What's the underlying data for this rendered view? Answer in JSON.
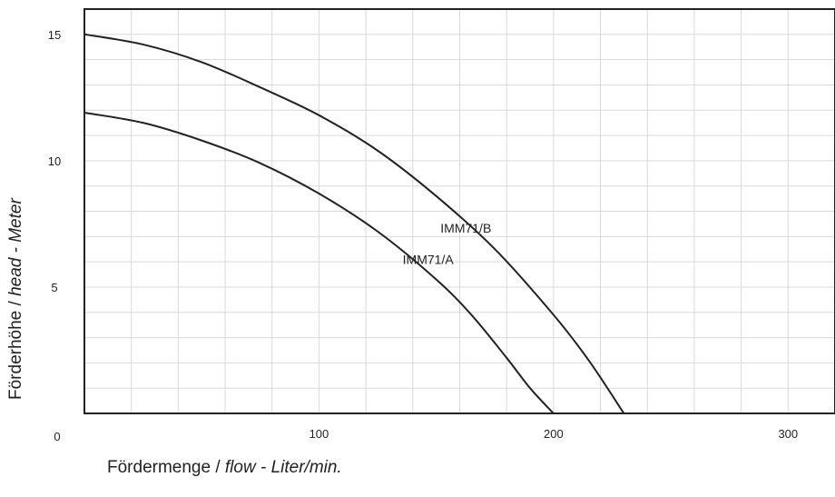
{
  "chart_data": {
    "type": "line",
    "xlabel": {
      "main": "Fördermenge / ",
      "italic": "flow - Liter/min."
    },
    "ylabel": {
      "main": "Förderhöhe / ",
      "italic": "head - Meter"
    },
    "xlim": [
      0,
      320
    ],
    "ylim": [
      0,
      16
    ],
    "x_ticks": [
      "100",
      "200",
      "300"
    ],
    "x_tick_values": [
      100,
      200,
      300
    ],
    "y_ticks": [
      "0",
      "5",
      "10",
      "15"
    ],
    "y_tick_values": [
      0,
      5,
      10,
      15
    ],
    "grid": true,
    "series": [
      {
        "name": "IMM71/B",
        "x": [
          0,
          25,
          50,
          75,
          100,
          125,
          150,
          175,
          200,
          215,
          230
        ],
        "y": [
          15.0,
          14.6,
          13.9,
          12.9,
          11.8,
          10.4,
          8.6,
          6.5,
          3.9,
          2.1,
          0.0
        ]
      },
      {
        "name": "IMM71/A",
        "x": [
          0,
          25,
          50,
          75,
          100,
          125,
          150,
          165,
          180,
          190,
          200
        ],
        "y": [
          11.9,
          11.5,
          10.8,
          9.9,
          8.7,
          7.2,
          5.3,
          3.9,
          2.2,
          1.0,
          0.0
        ]
      }
    ]
  }
}
